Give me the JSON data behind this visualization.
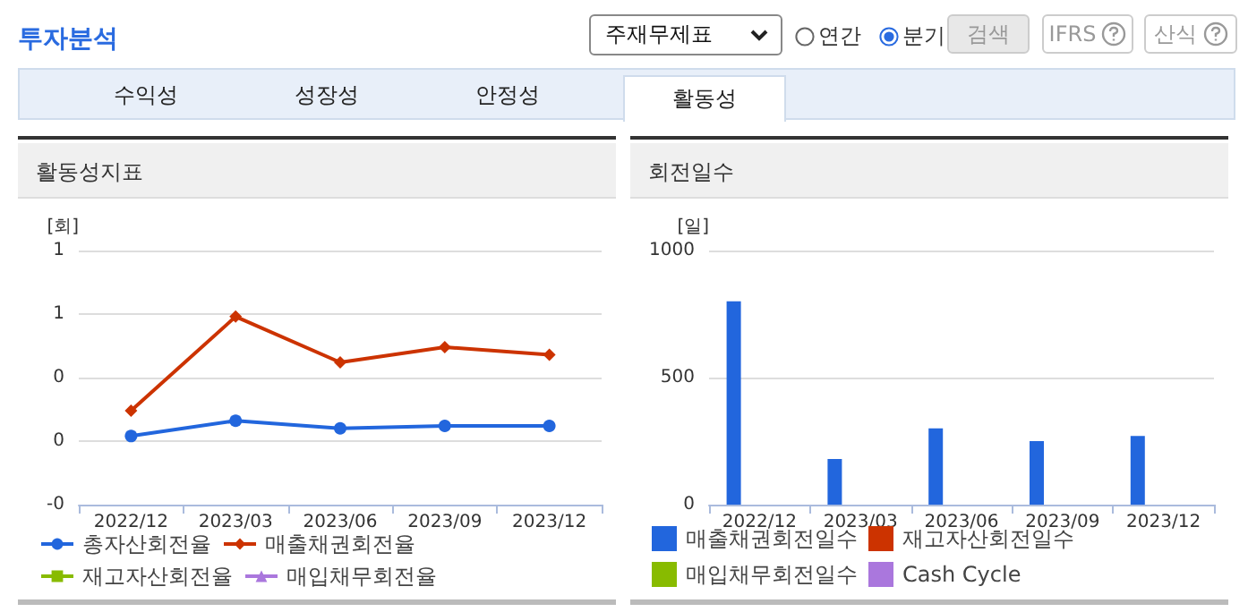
{
  "chart_data": [
    {
      "type": "other",
      "title": "투자분석",
      "annotations": [
        "주재무제표",
        "연간",
        "분기",
        "검색",
        "IFRS",
        "산식",
        "수익성",
        "성장성",
        "안정성",
        "활동성"
      ]
    },
    {
      "type": "line",
      "title": "활동성지표",
      "ylabel": "[회]",
      "categories": [
        "2022/12",
        "2023/03",
        "2023/06",
        "2023/09",
        "2023/12"
      ],
      "series": [
        {
          "name": "총자산회전율",
          "color": "#2266dd",
          "marker": "circle",
          "values": [
            0.02,
            0.08,
            0.05,
            0.06,
            0.06
          ]
        },
        {
          "name": "매출채권회전율",
          "color": "#cc3300",
          "marker": "diamond",
          "values": [
            0.12,
            0.49,
            0.31,
            0.37,
            0.34
          ]
        },
        {
          "name": "재고자산회전율",
          "color": "#88bb00",
          "marker": "square",
          "values": [
            null,
            null,
            null,
            null,
            null
          ]
        },
        {
          "name": "매입채무회전율",
          "color": "#aa77dd",
          "marker": "triangle",
          "values": [
            null,
            null,
            null,
            null,
            null
          ]
        }
      ],
      "ylim": [
        -0.25,
        0.75
      ],
      "yticks": [
        {
          "value": -0.25,
          "label": "-0"
        },
        {
          "value": 0,
          "label": "0"
        },
        {
          "value": 0.25,
          "label": "0"
        },
        {
          "value": 0.5,
          "label": "1"
        },
        {
          "value": 0.75,
          "label": "1"
        }
      ],
      "grid": "y",
      "legend": "bottom"
    },
    {
      "type": "bar",
      "title": "회전일수",
      "ylabel": "[일]",
      "categories": [
        "2022/12",
        "2023/03",
        "2023/06",
        "2023/09",
        "2023/12"
      ],
      "series": [
        {
          "name": "매출채권회전일수",
          "color": "#2266dd",
          "values": [
            800,
            180,
            300,
            250,
            270
          ]
        },
        {
          "name": "재고자산회전일수",
          "color": "#cc3300",
          "values": [
            null,
            null,
            null,
            null,
            null
          ]
        },
        {
          "name": "매입채무회전일수",
          "color": "#88bb00",
          "values": [
            null,
            null,
            null,
            null,
            null
          ]
        },
        {
          "name": "Cash Cycle",
          "color": "#aa77dd",
          "values": [
            null,
            null,
            null,
            null,
            null
          ]
        }
      ],
      "ylim": [
        0,
        1000
      ],
      "yticks": [
        0,
        500,
        1000
      ],
      "grid": "y",
      "legend": "bottom"
    }
  ]
}
